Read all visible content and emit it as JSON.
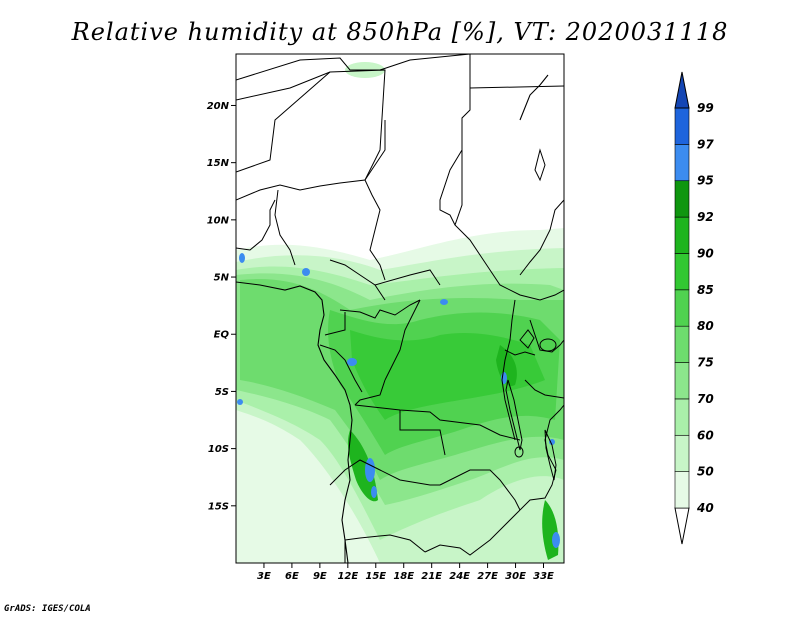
{
  "title": "Relative humidity at 850hPa [%], VT: 2020031118",
  "credit": "GrADS: IGES/COLA",
  "map": {
    "lat_ticks": [
      {
        "value": 20,
        "label": "20N"
      },
      {
        "value": 15,
        "label": "15N"
      },
      {
        "value": 10,
        "label": "10N"
      },
      {
        "value": 5,
        "label": "5N"
      },
      {
        "value": 0,
        "label": "EQ"
      },
      {
        "value": -5,
        "label": "5S"
      },
      {
        "value": -10,
        "label": "10S"
      },
      {
        "value": -15,
        "label": "15S"
      }
    ],
    "lon_ticks": [
      {
        "value": 3,
        "label": "3E"
      },
      {
        "value": 6,
        "label": "6E"
      },
      {
        "value": 9,
        "label": "9E"
      },
      {
        "value": 12,
        "label": "12E"
      },
      {
        "value": 15,
        "label": "15E"
      },
      {
        "value": 18,
        "label": "18E"
      },
      {
        "value": 21,
        "label": "21E"
      },
      {
        "value": 24,
        "label": "24E"
      },
      {
        "value": 27,
        "label": "27E"
      },
      {
        "value": 30,
        "label": "30E"
      },
      {
        "value": 33,
        "label": "33E"
      }
    ],
    "lat_range": [
      -20,
      24.5
    ],
    "lon_range": [
      0,
      35.2
    ]
  },
  "colorbar": {
    "levels": [
      "40",
      "50",
      "60",
      "70",
      "75",
      "80",
      "85",
      "90",
      "92",
      "95",
      "97",
      "99"
    ],
    "colors": [
      "#ffffff",
      "#e6fae6",
      "#c8f5c8",
      "#aaf0aa",
      "#8ce68c",
      "#6edc6e",
      "#50d250",
      "#32c832",
      "#1eb41e",
      "#0f960f",
      "#3c8cf0",
      "#1e64dc",
      "#1446b4"
    ]
  }
}
